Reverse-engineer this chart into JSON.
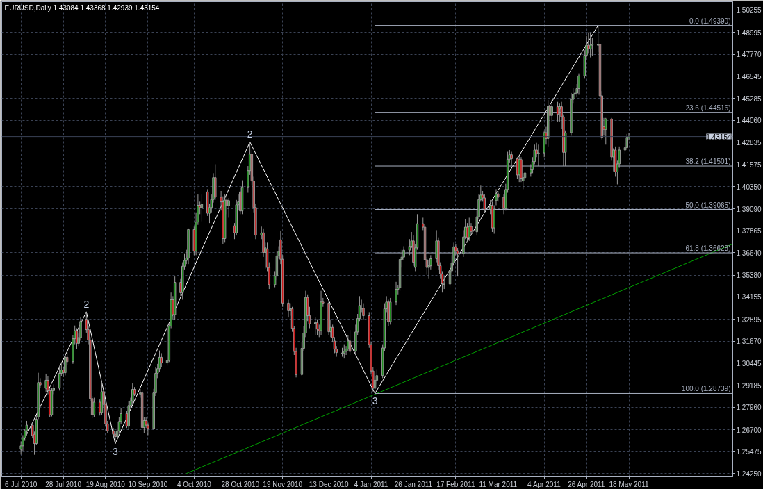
{
  "chart_data": {
    "type": "candlestick",
    "title": "EURUSD,Daily  1.43084 1.43368 1.42939 1.43154",
    "x": [
      "2010-07-06",
      "2010-07-07",
      "2010-07-08",
      "2010-07-09",
      "2010-07-12",
      "2010-07-13",
      "2010-07-14",
      "2010-07-15",
      "2010-07-16",
      "2010-07-19",
      "2010-07-20",
      "2010-07-21",
      "2010-07-22",
      "2010-07-23",
      "2010-07-26",
      "2010-07-27",
      "2010-07-28",
      "2010-07-29",
      "2010-07-30",
      "2010-08-02",
      "2010-08-03",
      "2010-08-04",
      "2010-08-05",
      "2010-08-06",
      "2010-08-09",
      "2010-08-10",
      "2010-08-11",
      "2010-08-12",
      "2010-08-13",
      "2010-08-16",
      "2010-08-17",
      "2010-08-18",
      "2010-08-19",
      "2010-08-20",
      "2010-08-23",
      "2010-08-24",
      "2010-08-25",
      "2010-08-26",
      "2010-08-27",
      "2010-08-30",
      "2010-08-31",
      "2010-09-01",
      "2010-09-02",
      "2010-09-03",
      "2010-09-06",
      "2010-09-07",
      "2010-09-08",
      "2010-09-09",
      "2010-09-10",
      "2010-09-13",
      "2010-09-14",
      "2010-09-15",
      "2010-09-16",
      "2010-09-17",
      "2010-09-20",
      "2010-09-21",
      "2010-09-22",
      "2010-09-23",
      "2010-09-24",
      "2010-09-27",
      "2010-09-28",
      "2010-09-29",
      "2010-09-30",
      "2010-10-01",
      "2010-10-04",
      "2010-10-05",
      "2010-10-06",
      "2010-10-07",
      "2010-10-08",
      "2010-10-11",
      "2010-10-12",
      "2010-10-13",
      "2010-10-14",
      "2010-10-15",
      "2010-10-18",
      "2010-10-19",
      "2010-10-20",
      "2010-10-21",
      "2010-10-22",
      "2010-10-25",
      "2010-10-26",
      "2010-10-27",
      "2010-10-28",
      "2010-10-29",
      "2010-11-01",
      "2010-11-02",
      "2010-11-03",
      "2010-11-04",
      "2010-11-05",
      "2010-11-08",
      "2010-11-09",
      "2010-11-10",
      "2010-11-11",
      "2010-11-12",
      "2010-11-15",
      "2010-11-16",
      "2010-11-17",
      "2010-11-18",
      "2010-11-19",
      "2010-11-22",
      "2010-11-23",
      "2010-11-24",
      "2010-11-25",
      "2010-11-26",
      "2010-11-29",
      "2010-11-30",
      "2010-12-01",
      "2010-12-02",
      "2010-12-03",
      "2010-12-06",
      "2010-12-07",
      "2010-12-08",
      "2010-12-09",
      "2010-12-10",
      "2010-12-13",
      "2010-12-14",
      "2010-12-15",
      "2010-12-16",
      "2010-12-17",
      "2010-12-20",
      "2010-12-21",
      "2010-12-22",
      "2010-12-23",
      "2010-12-24",
      "2010-12-27",
      "2010-12-28",
      "2010-12-29",
      "2010-12-30",
      "2010-12-31",
      "2011-01-03",
      "2011-01-04",
      "2011-01-05",
      "2011-01-06",
      "2011-01-07",
      "2011-01-10",
      "2011-01-11",
      "2011-01-12",
      "2011-01-13",
      "2011-01-14",
      "2011-01-17",
      "2011-01-18",
      "2011-01-19",
      "2011-01-20",
      "2011-01-21",
      "2011-01-24",
      "2011-01-25",
      "2011-01-26",
      "2011-01-27",
      "2011-01-28",
      "2011-01-31",
      "2011-02-01",
      "2011-02-02",
      "2011-02-03",
      "2011-02-04",
      "2011-02-07",
      "2011-02-08",
      "2011-02-09",
      "2011-02-10",
      "2011-02-11",
      "2011-02-14",
      "2011-02-15",
      "2011-02-16",
      "2011-02-17",
      "2011-02-18",
      "2011-02-21",
      "2011-02-22",
      "2011-02-23",
      "2011-02-24",
      "2011-02-25",
      "2011-02-28",
      "2011-03-01",
      "2011-03-02",
      "2011-03-03",
      "2011-03-04",
      "2011-03-07",
      "2011-03-08",
      "2011-03-09",
      "2011-03-10",
      "2011-03-11",
      "2011-03-14",
      "2011-03-15",
      "2011-03-16",
      "2011-03-17",
      "2011-03-18",
      "2011-03-21",
      "2011-03-22",
      "2011-03-23",
      "2011-03-24",
      "2011-03-25",
      "2011-03-28",
      "2011-03-29",
      "2011-03-30",
      "2011-03-31",
      "2011-04-01",
      "2011-04-04",
      "2011-04-05",
      "2011-04-06",
      "2011-04-07",
      "2011-04-08",
      "2011-04-11",
      "2011-04-12",
      "2011-04-13",
      "2011-04-14",
      "2011-04-15",
      "2011-04-18",
      "2011-04-19",
      "2011-04-20",
      "2011-04-21",
      "2011-04-22",
      "2011-04-25",
      "2011-04-26",
      "2011-04-27",
      "2011-04-28",
      "2011-04-29",
      "2011-05-02",
      "2011-05-03",
      "2011-05-04",
      "2011-05-05",
      "2011-05-06",
      "2011-05-09",
      "2011-05-10",
      "2011-05-11",
      "2011-05-12",
      "2011-05-13",
      "2011-05-16",
      "2011-05-17",
      "2011-05-18"
    ],
    "ohlc": [
      [
        1.256,
        1.2605,
        1.2531,
        1.258
      ],
      [
        1.258,
        1.264,
        1.2548,
        1.2625
      ],
      [
        1.2625,
        1.2675,
        1.2608,
        1.2664
      ],
      [
        1.2664,
        1.272,
        1.264,
        1.2696
      ],
      [
        1.2696,
        1.2712,
        1.2622,
        1.2638
      ],
      [
        1.2645,
        1.266,
        1.253,
        1.2593
      ],
      [
        1.2593,
        1.275,
        1.2585,
        1.2729
      ],
      [
        1.2742,
        1.299,
        1.273,
        1.2935
      ],
      [
        1.2935,
        1.296,
        1.2905,
        1.2922
      ],
      [
        1.2903,
        1.2985,
        1.288,
        1.2948
      ],
      [
        1.2948,
        1.297,
        1.287,
        1.289
      ],
      [
        1.289,
        1.2905,
        1.274,
        1.2754
      ],
      [
        1.2754,
        1.2905,
        1.2745,
        1.289
      ],
      [
        1.289,
        1.2925,
        1.287,
        1.2903
      ],
      [
        1.2903,
        1.303,
        1.289,
        1.2987
      ],
      [
        1.2987,
        1.304,
        1.297,
        1.3006
      ],
      [
        1.3006,
        1.302,
        1.2965,
        1.299
      ],
      [
        1.299,
        1.31,
        1.2975,
        1.3077
      ],
      [
        1.3077,
        1.311,
        1.3035,
        1.3052
      ],
      [
        1.3052,
        1.32,
        1.304,
        1.3181
      ],
      [
        1.3181,
        1.3255,
        1.315,
        1.3226
      ],
      [
        1.3226,
        1.324,
        1.3125,
        1.3155
      ],
      [
        1.3155,
        1.321,
        1.314,
        1.3187
      ],
      [
        1.3187,
        1.33,
        1.317,
        1.3278
      ],
      [
        1.329,
        1.3332,
        1.3215,
        1.3232
      ],
      [
        1.3232,
        1.3255,
        1.315,
        1.3174
      ],
      [
        1.3174,
        1.319,
        1.283,
        1.2845
      ],
      [
        1.2845,
        1.286,
        1.2735,
        1.2754
      ],
      [
        1.2754,
        1.285,
        1.274,
        1.2825
      ],
      [
        1.2825,
        1.284,
        1.275,
        1.2767
      ],
      [
        1.2767,
        1.294,
        1.2755,
        1.2884
      ],
      [
        1.2884,
        1.2905,
        1.2795,
        1.2813
      ],
      [
        1.2813,
        1.283,
        1.269,
        1.2703
      ],
      [
        1.2703,
        1.272,
        1.265,
        1.2664
      ],
      [
        1.2664,
        1.268,
        1.263,
        1.2645
      ],
      [
        1.2645,
        1.266,
        1.2592,
        1.2632
      ],
      [
        1.2632,
        1.268,
        1.261,
        1.2664
      ],
      [
        1.2664,
        1.274,
        1.265,
        1.2716
      ],
      [
        1.2716,
        1.279,
        1.27,
        1.2761
      ],
      [
        1.2761,
        1.2775,
        1.268,
        1.269
      ],
      [
        1.269,
        1.283,
        1.267,
        1.2806
      ],
      [
        1.2806,
        1.285,
        1.279,
        1.2832
      ],
      [
        1.2832,
        1.293,
        1.2815,
        1.2897
      ],
      [
        1.2897,
        1.291,
        1.286,
        1.2871
      ],
      [
        1.2871,
        1.29,
        1.285,
        1.2877
      ],
      [
        1.2877,
        1.289,
        1.267,
        1.2683
      ],
      [
        1.2683,
        1.274,
        1.265,
        1.2722
      ],
      [
        1.2722,
        1.274,
        1.268,
        1.2696
      ],
      [
        1.2696,
        1.271,
        1.264,
        1.2677
      ],
      [
        1.2677,
        1.29,
        1.267,
        1.2877
      ],
      [
        1.2877,
        1.302,
        1.286,
        1.2987
      ],
      [
        1.2987,
        1.304,
        1.296,
        1.3013
      ],
      [
        1.3013,
        1.3115,
        1.2995,
        1.3077
      ],
      [
        1.3077,
        1.31,
        1.302,
        1.3045
      ],
      [
        1.3045,
        1.308,
        1.303,
        1.3058
      ],
      [
        1.3058,
        1.327,
        1.305,
        1.3252
      ],
      [
        1.3252,
        1.344,
        1.324,
        1.34
      ],
      [
        1.34,
        1.342,
        1.329,
        1.3316
      ],
      [
        1.3316,
        1.353,
        1.3285,
        1.3497
      ],
      [
        1.3497,
        1.352,
        1.342,
        1.3439
      ],
      [
        1.3439,
        1.361,
        1.34,
        1.3588
      ],
      [
        1.3588,
        1.366,
        1.357,
        1.362
      ],
      [
        1.362,
        1.368,
        1.36,
        1.3633
      ],
      [
        1.3633,
        1.38,
        1.36,
        1.3794
      ],
      [
        1.3794,
        1.381,
        1.365,
        1.3672
      ],
      [
        1.3672,
        1.389,
        1.365,
        1.3836
      ],
      [
        1.3836,
        1.399,
        1.382,
        1.393
      ],
      [
        1.393,
        1.395,
        1.388,
        1.3917
      ],
      [
        1.3917,
        1.399,
        1.384,
        1.3936
      ],
      [
        1.4005,
        1.402,
        1.387,
        1.3885
      ],
      [
        1.3885,
        1.394,
        1.383,
        1.3917
      ],
      [
        1.3917,
        1.399,
        1.389,
        1.3962
      ],
      [
        1.3962,
        1.411,
        1.3945,
        1.4085
      ],
      [
        1.4085,
        1.416,
        1.396,
        1.3975
      ],
      [
        1.3975,
        1.401,
        1.39,
        1.3949
      ],
      [
        1.3949,
        1.398,
        1.371,
        1.3743
      ],
      [
        1.3743,
        1.399,
        1.372,
        1.3959
      ],
      [
        1.3959,
        1.399,
        1.388,
        1.3927
      ],
      [
        1.3927,
        1.397,
        1.386,
        1.3956
      ],
      [
        1.3814,
        1.383,
        1.374,
        1.3775
      ],
      [
        1.3775,
        1.396,
        1.376,
        1.3933
      ],
      [
        1.3933,
        1.399,
        1.39,
        1.3949
      ],
      [
        1.4005,
        1.403,
        1.388,
        1.3898
      ],
      [
        1.3898,
        1.407,
        1.388,
        1.4033
      ],
      [
        1.4033,
        1.415,
        1.4,
        1.4124
      ],
      [
        1.4124,
        1.4285,
        1.41,
        1.4217
      ],
      [
        1.4217,
        1.424,
        1.404,
        1.4066
      ],
      [
        1.4066,
        1.409,
        1.389,
        1.3917
      ],
      [
        1.3917,
        1.394,
        1.374,
        1.3762
      ],
      [
        1.3762,
        1.381,
        1.374,
        1.3775
      ],
      [
        1.3775,
        1.38,
        1.364,
        1.3665
      ],
      [
        1.3665,
        1.372,
        1.3575,
        1.3691
      ],
      [
        1.3684,
        1.372,
        1.356,
        1.3581
      ],
      [
        1.3581,
        1.361,
        1.346,
        1.3484
      ],
      [
        1.3484,
        1.356,
        1.347,
        1.3532
      ],
      [
        1.3532,
        1.367,
        1.351,
        1.3646
      ],
      [
        1.3646,
        1.37,
        1.363,
        1.3672
      ],
      [
        1.3736,
        1.3788,
        1.36,
        1.3627
      ],
      [
        1.3627,
        1.365,
        1.336,
        1.3381
      ],
      [
        1.3381,
        1.34,
        1.33,
        1.3338
      ],
      [
        1.3338,
        1.338,
        1.331,
        1.3349
      ],
      [
        1.3349,
        1.336,
        1.322,
        1.3239
      ],
      [
        1.3239,
        1.325,
        1.309,
        1.311
      ],
      [
        1.311,
        1.313,
        1.2964,
        1.298
      ],
      [
        1.298,
        1.316,
        1.297,
        1.3127
      ],
      [
        1.3127,
        1.325,
        1.311,
        1.3213
      ],
      [
        1.3213,
        1.345,
        1.319,
        1.3413
      ],
      [
        1.3413,
        1.343,
        1.328,
        1.331
      ],
      [
        1.331,
        1.336,
        1.324,
        1.3265
      ],
      [
        1.3265,
        1.33,
        1.32,
        1.3271
      ],
      [
        1.3271,
        1.329,
        1.32,
        1.3235
      ],
      [
        1.3235,
        1.326,
        1.319,
        1.3226
      ],
      [
        1.3226,
        1.345,
        1.32,
        1.3387
      ],
      [
        1.3387,
        1.341,
        1.336,
        1.3381
      ],
      [
        1.3381,
        1.34,
        1.32,
        1.322
      ],
      [
        1.322,
        1.329,
        1.319,
        1.3245
      ],
      [
        1.3245,
        1.326,
        1.316,
        1.3187
      ],
      [
        1.3168,
        1.319,
        1.31,
        1.3123
      ],
      [
        1.3123,
        1.314,
        1.308,
        1.3103
      ],
      [
        1.3098,
        1.313,
        1.308,
        1.3101
      ],
      [
        1.3101,
        1.315,
        1.307,
        1.311
      ],
      [
        1.311,
        1.314,
        1.309,
        1.3123
      ],
      [
        1.3123,
        1.32,
        1.311,
        1.3168
      ],
      [
        1.3168,
        1.323,
        1.309,
        1.311
      ],
      [
        1.311,
        1.326,
        1.309,
        1.3219
      ],
      [
        1.3219,
        1.332,
        1.32,
        1.3294
      ],
      [
        1.3294,
        1.342,
        1.328,
        1.3368
      ],
      [
        1.3348,
        1.34,
        1.333,
        1.3352
      ],
      [
        1.3352,
        1.338,
        1.329,
        1.331
      ],
      [
        1.331,
        1.333,
        1.313,
        1.3148
      ],
      [
        1.3148,
        1.316,
        1.298,
        1.3
      ],
      [
        1.3,
        1.302,
        1.2885,
        1.2903
      ],
      [
        1.2903,
        1.299,
        1.28739,
        1.2948
      ],
      [
        1.2948,
        1.301,
        1.2925,
        1.2974
      ],
      [
        1.2974,
        1.315,
        1.296,
        1.3129
      ],
      [
        1.3129,
        1.338,
        1.311,
        1.3349
      ],
      [
        1.3349,
        1.342,
        1.333,
        1.3387
      ],
      [
        1.3387,
        1.34,
        1.325,
        1.3277
      ],
      [
        1.3277,
        1.341,
        1.326,
        1.3387
      ],
      [
        1.3387,
        1.35,
        1.337,
        1.3458
      ],
      [
        1.3458,
        1.348,
        1.343,
        1.3467
      ],
      [
        1.3467,
        1.368,
        1.345,
        1.3626
      ],
      [
        1.3626,
        1.368,
        1.358,
        1.3639
      ],
      [
        1.3639,
        1.37,
        1.362,
        1.3678
      ],
      [
        1.3678,
        1.374,
        1.365,
        1.37
      ],
      [
        1.37,
        1.378,
        1.369,
        1.373
      ],
      [
        1.373,
        1.376,
        1.359,
        1.361
      ],
      [
        1.3581,
        1.371,
        1.356,
        1.3691
      ],
      [
        1.3691,
        1.388,
        1.368,
        1.3826
      ],
      [
        1.3826,
        1.386,
        1.379,
        1.3807
      ],
      [
        1.3807,
        1.382,
        1.36,
        1.3624
      ],
      [
        1.3624,
        1.364,
        1.354,
        1.3581
      ],
      [
        1.3581,
        1.362,
        1.352,
        1.359
      ],
      [
        1.359,
        1.365,
        1.357,
        1.363
      ],
      [
        1.363,
        1.379,
        1.361,
        1.373
      ],
      [
        1.373,
        1.375,
        1.357,
        1.3591
      ],
      [
        1.3591,
        1.361,
        1.352,
        1.3545
      ],
      [
        1.3545,
        1.356,
        1.344,
        1.3491
      ],
      [
        1.3485,
        1.353,
        1.346,
        1.3488
      ],
      [
        1.3488,
        1.36,
        1.347,
        1.3562
      ],
      [
        1.3562,
        1.365,
        1.355,
        1.3607
      ],
      [
        1.3607,
        1.372,
        1.359,
        1.3697
      ],
      [
        1.3697,
        1.371,
        1.365,
        1.3674
      ],
      [
        1.3674,
        1.369,
        1.353,
        1.3659
      ],
      [
        1.3659,
        1.379,
        1.364,
        1.3752
      ],
      [
        1.3752,
        1.385,
        1.374,
        1.3807
      ],
      [
        1.3807,
        1.383,
        1.372,
        1.3749
      ],
      [
        1.3749,
        1.386,
        1.373,
        1.3811
      ],
      [
        1.3811,
        1.383,
        1.376,
        1.3781
      ],
      [
        1.3781,
        1.39,
        1.376,
        1.3865
      ],
      [
        1.3865,
        1.399,
        1.385,
        1.3962
      ],
      [
        1.3962,
        1.404,
        1.395,
        1.3987
      ],
      [
        1.3987,
        1.401,
        1.395,
        1.3971
      ],
      [
        1.3971,
        1.399,
        1.389,
        1.3907
      ],
      [
        1.3907,
        1.396,
        1.388,
        1.393
      ],
      [
        1.393,
        1.395,
        1.378,
        1.3803
      ],
      [
        1.3803,
        1.393,
        1.377,
        1.3907
      ],
      [
        1.3956,
        1.402,
        1.393,
        1.3994
      ],
      [
        1.3994,
        1.401,
        1.395,
        1.3975
      ],
      [
        1.3975,
        1.399,
        1.388,
        1.3911
      ],
      [
        1.3911,
        1.405,
        1.39,
        1.4018
      ],
      [
        1.4018,
        1.423,
        1.4,
        1.4188
      ],
      [
        1.4188,
        1.424,
        1.417,
        1.4214
      ],
      [
        1.4214,
        1.423,
        1.415,
        1.4191
      ],
      [
        1.4191,
        1.42,
        1.408,
        1.41
      ],
      [
        1.41,
        1.421,
        1.406,
        1.4186
      ],
      [
        1.4186,
        1.42,
        1.406,
        1.4082
      ],
      [
        1.4066,
        1.411,
        1.402,
        1.4085
      ],
      [
        1.4085,
        1.414,
        1.406,
        1.4111
      ],
      [
        1.4111,
        1.416,
        1.409,
        1.413
      ],
      [
        1.413,
        1.42,
        1.411,
        1.4175
      ],
      [
        1.4175,
        1.427,
        1.416,
        1.424
      ],
      [
        1.424,
        1.428,
        1.42,
        1.422
      ],
      [
        1.422,
        1.427,
        1.415,
        1.4224
      ],
      [
        1.4224,
        1.435,
        1.42,
        1.4337
      ],
      [
        1.4337,
        1.437,
        1.427,
        1.4305
      ],
      [
        1.4305,
        1.452,
        1.426,
        1.4485
      ],
      [
        1.4485,
        1.453,
        1.442,
        1.4434
      ],
      [
        1.4434,
        1.452,
        1.44,
        1.4483
      ],
      [
        1.4483,
        1.451,
        1.44,
        1.444
      ],
      [
        1.447,
        1.45,
        1.44,
        1.4483
      ],
      [
        1.4483,
        1.451,
        1.436,
        1.4427
      ],
      [
        1.4427,
        1.444,
        1.415,
        1.4227
      ],
      [
        1.4227,
        1.435,
        1.415,
        1.4337
      ],
      [
        1.4337,
        1.456,
        1.432,
        1.4524
      ],
      [
        1.4524,
        1.459,
        1.45,
        1.4553
      ],
      [
        1.4553,
        1.46,
        1.448,
        1.4559
      ],
      [
        1.4559,
        1.461,
        1.454,
        1.4585
      ],
      [
        1.4585,
        1.467,
        1.455,
        1.4656
      ],
      [
        1.4656,
        1.48,
        1.464,
        1.4772
      ],
      [
        1.4772,
        1.488,
        1.476,
        1.4828
      ],
      [
        1.4828,
        1.49,
        1.478,
        1.4808
      ],
      [
        1.4808,
        1.49,
        1.476,
        1.4828
      ],
      [
        1.4828,
        1.487,
        1.477,
        1.4833
      ],
      [
        1.4828,
        1.4939,
        1.479,
        1.4834
      ],
      [
        1.4834,
        1.488,
        1.452,
        1.4544
      ],
      [
        1.4544,
        1.457,
        1.43,
        1.4311
      ],
      [
        1.4371,
        1.442,
        1.432,
        1.4356
      ],
      [
        1.4356,
        1.442,
        1.427,
        1.4414
      ],
      [
        1.4414,
        1.442,
        1.418,
        1.4201
      ],
      [
        1.4201,
        1.425,
        1.412,
        1.424
      ],
      [
        1.424,
        1.426,
        1.409,
        1.4117
      ],
      [
        1.4117,
        1.418,
        1.4047,
        1.4162
      ],
      [
        1.4162,
        1.426,
        1.414,
        1.424
      ],
      [
        1.424,
        1.428,
        1.422,
        1.4253
      ],
      [
        1.4253,
        1.433,
        1.424,
        1.4311
      ],
      [
        1.43084,
        1.43368,
        1.42939,
        1.43154
      ]
    ],
    "series": [
      {
        "type": "line",
        "color": "#ffffff",
        "x": [
          "2010-07-07",
          "2010-08-09",
          "2010-08-24",
          "2010-11-02",
          "2011-01-06",
          "2011-05-02"
        ],
        "values": [
          1.26,
          1.3332,
          1.2592,
          1.4285,
          1.28739,
          1.4939
        ]
      },
      {
        "type": "line",
        "color": "#00a000",
        "x": [
          "2010-09-30",
          "2011-07-11"
        ],
        "values": [
          1.2425,
          1.3713
        ]
      },
      {
        "type": "line",
        "color": "#a8b0c0",
        "name": "0.0 (1.49390)",
        "x": [
          "2011-01-06",
          "2011-07-11"
        ],
        "values": [
          1.4939,
          1.4939
        ]
      },
      {
        "type": "line",
        "color": "#a8b0c0",
        "name": "23.6 (1.44516)",
        "x": [
          "2011-01-06",
          "2011-07-11"
        ],
        "values": [
          1.44516,
          1.44516
        ]
      },
      {
        "type": "line",
        "color": "#a8b0c0",
        "name": "38.2 (1.41501)",
        "x": [
          "2011-01-06",
          "2011-07-11"
        ],
        "values": [
          1.41501,
          1.41501
        ]
      },
      {
        "type": "line",
        "color": "#a8b0c0",
        "name": "50.0 (1.39065)",
        "x": [
          "2011-01-06",
          "2011-07-11"
        ],
        "values": [
          1.39065,
          1.39065
        ]
      },
      {
        "type": "line",
        "color": "#a8b0c0",
        "name": "61.8 (1.36628)",
        "x": [
          "2011-01-06",
          "2011-07-11"
        ],
        "values": [
          1.36628,
          1.36628
        ]
      },
      {
        "type": "line",
        "color": "#a8b0c0",
        "name": "100.0 (1.28739)",
        "x": [
          "2011-01-06",
          "2011-07-11"
        ],
        "values": [
          1.28739,
          1.28739
        ]
      }
    ],
    "ref_lines": [
      {
        "axis": "y",
        "value": 1.43154,
        "label": "1.43154",
        "color": "#3a4256"
      }
    ],
    "annotations": [
      {
        "text": "2",
        "x": "2010-08-09",
        "y": 1.3332
      },
      {
        "text": "3",
        "x": "2010-08-24",
        "y": 1.2592
      },
      {
        "text": "2",
        "x": "2010-11-02",
        "y": 1.4285
      },
      {
        "text": "3",
        "x": "2011-01-06",
        "y": 1.28739
      }
    ],
    "xlim": [
      "2010-06-26",
      "2011-07-11"
    ],
    "ylim": [
      1.2406,
      1.5072
    ],
    "xticks": [
      {
        "value": "2010-07-06",
        "label": "6 Jul 2010"
      },
      {
        "value": "2010-07-28",
        "label": "28 Jul 2010"
      },
      {
        "value": "2010-08-19",
        "label": "19 Aug 2010"
      },
      {
        "value": "2010-09-10",
        "label": "10 Sep 2010"
      },
      {
        "value": "2010-10-04",
        "label": "4 Oct 2010"
      },
      {
        "value": "2010-10-28",
        "label": "28 Oct 2010"
      },
      {
        "value": "2010-11-19",
        "label": "19 Nov 2010"
      },
      {
        "value": "2010-12-13",
        "label": "13 Dec 2010"
      },
      {
        "value": "2011-01-04",
        "label": "4 Jan 2011"
      },
      {
        "value": "2011-01-26",
        "label": "26 Jan 2011"
      },
      {
        "value": "2011-02-17",
        "label": "17 Feb 2011"
      },
      {
        "value": "2011-03-11",
        "label": "11 Mar 2011"
      },
      {
        "value": "2011-04-04",
        "label": "4 Apr 2011"
      },
      {
        "value": "2011-04-26",
        "label": "26 Apr 2011"
      },
      {
        "value": "2011-05-18",
        "label": "18 May 2011"
      }
    ],
    "yticks": [
      {
        "value": 1.50255,
        "label": "1.50255"
      },
      {
        "value": 1.48995,
        "label": "1.48995"
      },
      {
        "value": 1.4777,
        "label": "1.47770"
      },
      {
        "value": 1.46545,
        "label": "1.46545"
      },
      {
        "value": 1.45285,
        "label": "1.45285"
      },
      {
        "value": 1.4406,
        "label": "1.44060"
      },
      {
        "value": 1.42835,
        "label": "1.42835"
      },
      {
        "value": 1.41575,
        "label": "1.41575"
      },
      {
        "value": 1.4035,
        "label": "1.40350"
      },
      {
        "value": 1.3909,
        "label": "1.39090"
      },
      {
        "value": 1.37865,
        "label": "1.37865"
      },
      {
        "value": 1.3664,
        "label": "1.36640"
      },
      {
        "value": 1.3538,
        "label": "1.35380"
      },
      {
        "value": 1.34155,
        "label": "1.34155"
      },
      {
        "value": 1.32895,
        "label": "1.32895"
      },
      {
        "value": 1.3167,
        "label": "1.31670"
      },
      {
        "value": 1.30445,
        "label": "1.30445"
      },
      {
        "value": 1.29185,
        "label": "1.29185"
      },
      {
        "value": 1.2796,
        "label": "1.27960"
      },
      {
        "value": 1.267,
        "label": "1.26700"
      },
      {
        "value": 1.25475,
        "label": "1.25475"
      },
      {
        "value": 1.2425,
        "label": "1.24250"
      }
    ],
    "grid": true,
    "legend": "right"
  }
}
